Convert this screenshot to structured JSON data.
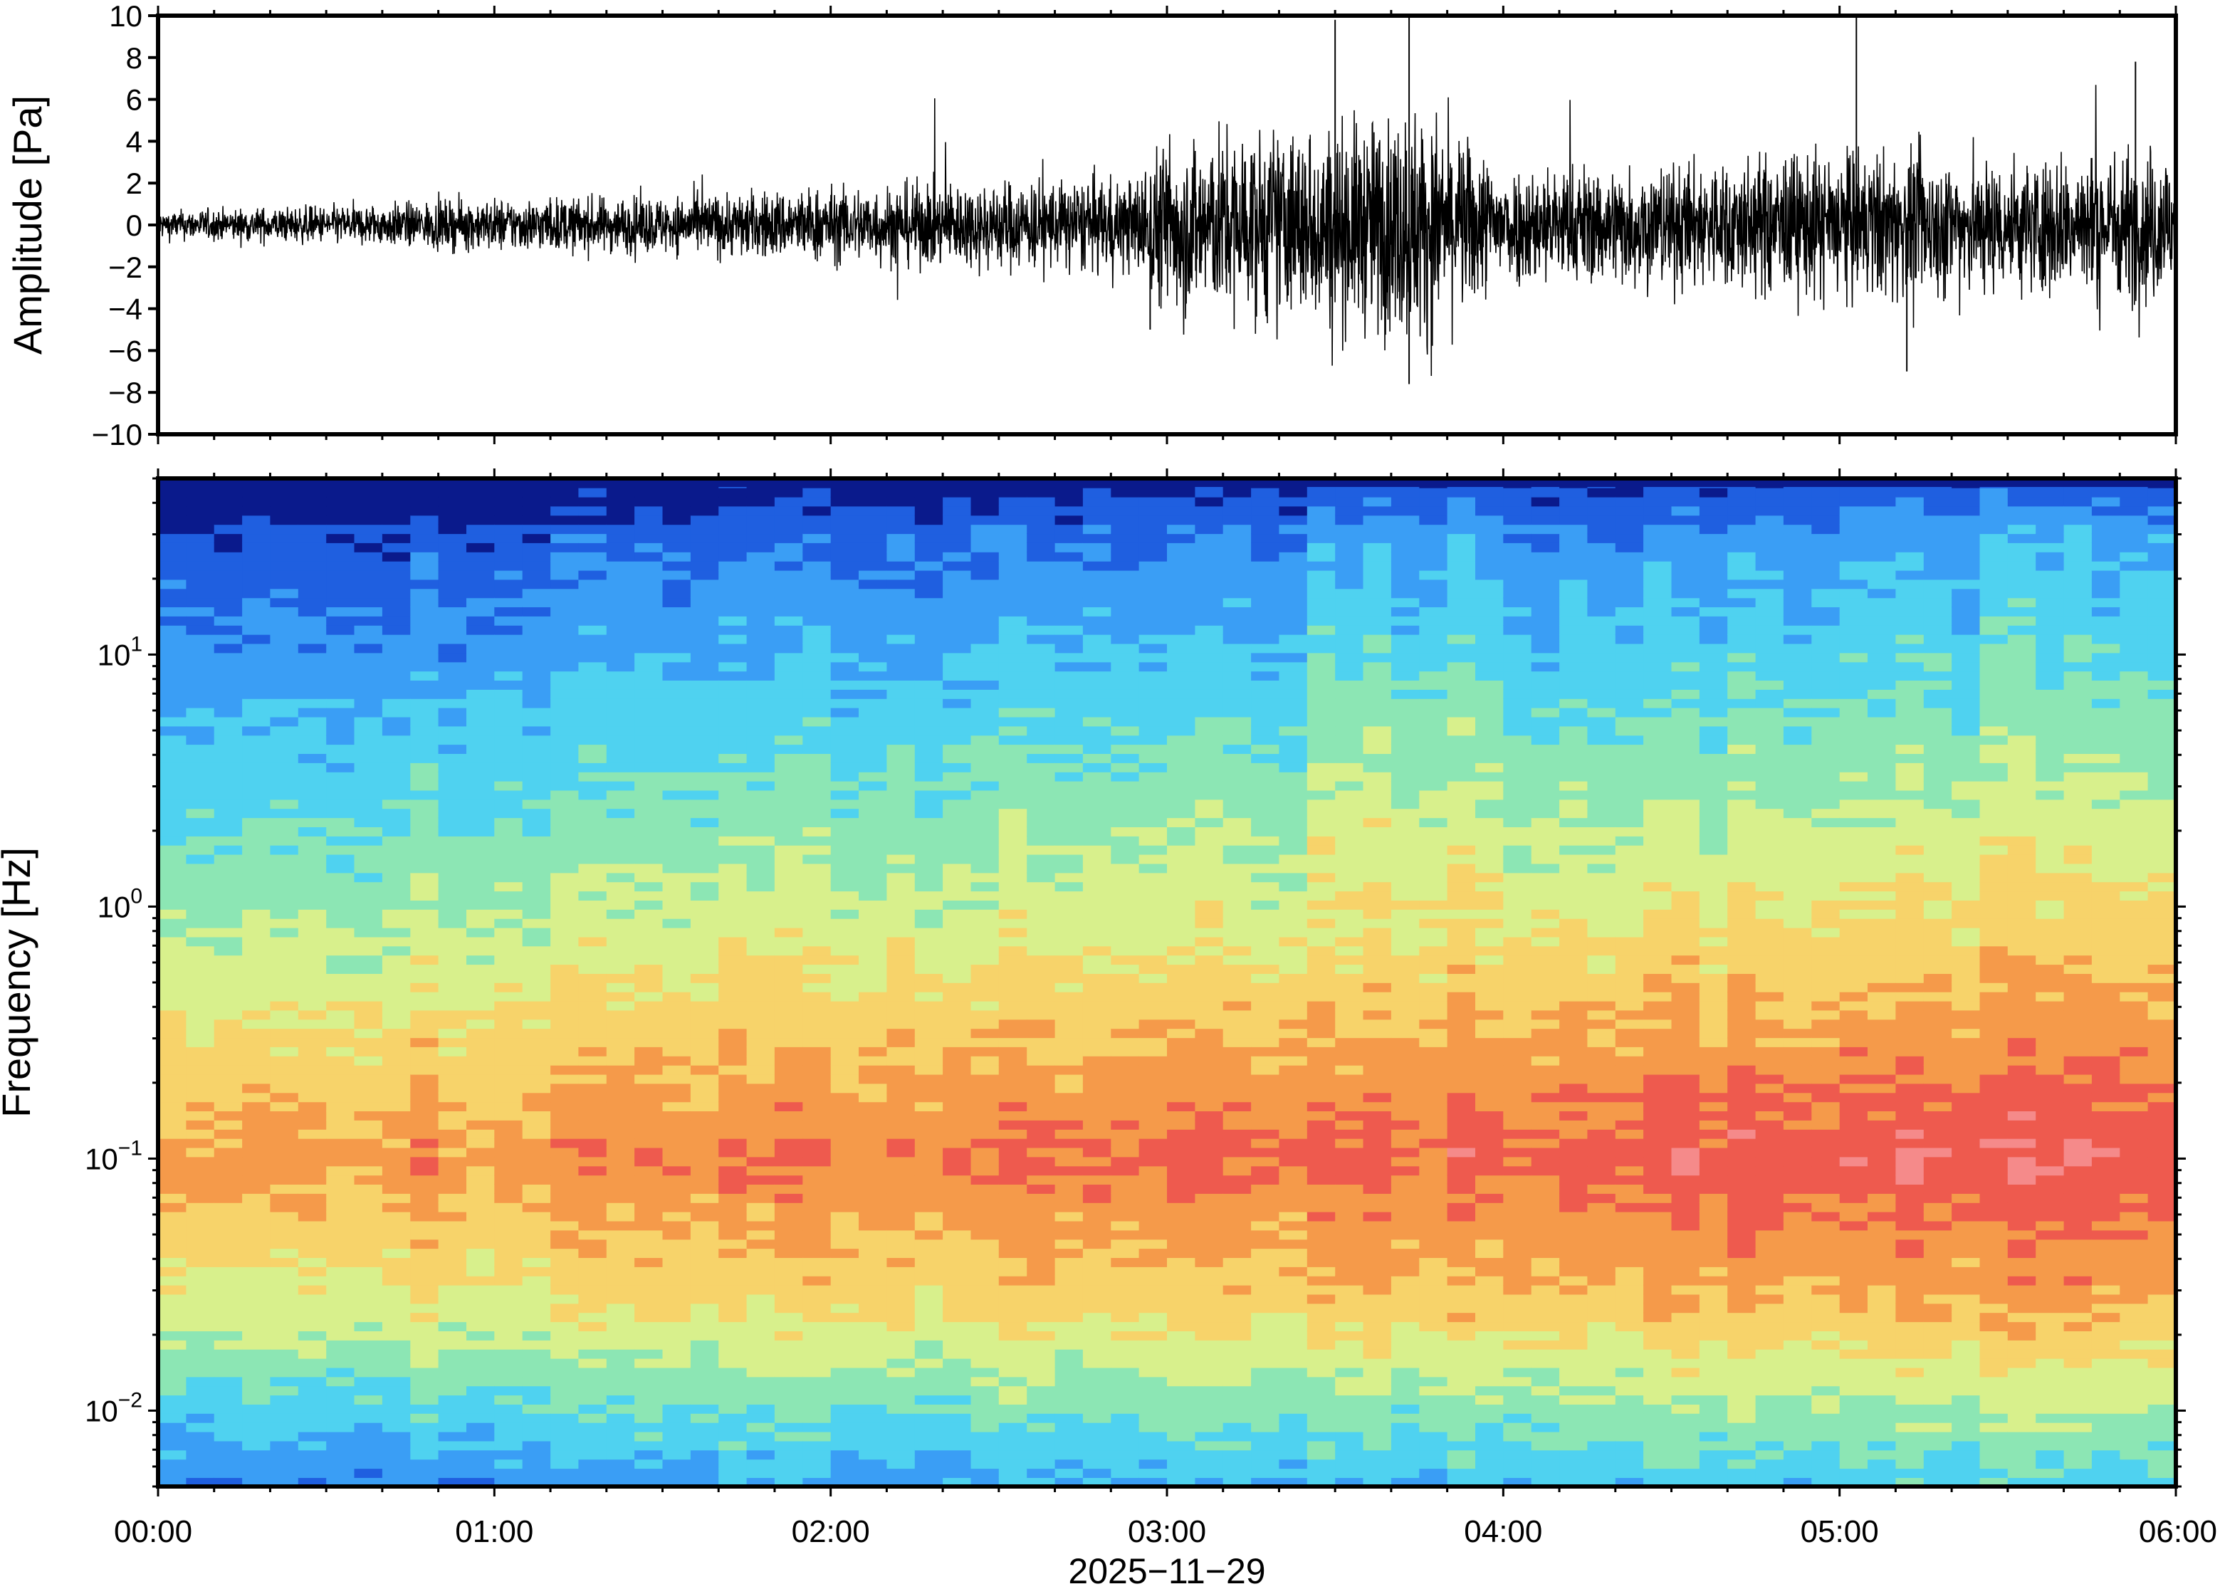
{
  "chart_data": [
    {
      "type": "line",
      "ylabel": "Amplitude [Pa]",
      "ylim": [
        -10,
        10
      ],
      "yticks": [
        "10",
        "8",
        "6",
        "4",
        "2",
        "0",
        "−2",
        "−4",
        "−6",
        "−8",
        "−10"
      ],
      "ytick_values": [
        10,
        8,
        6,
        4,
        2,
        0,
        -2,
        -4,
        -6,
        -8,
        -10
      ],
      "series": [
        {
          "color": "#000000",
          "envelope_note_hours": [
            0,
            0.5,
            1,
            1.5,
            2,
            2.5,
            2.9,
            3.0,
            3.5,
            3.75,
            4.0,
            4.5,
            5.0,
            5.5,
            6.0
          ],
          "envelope_pa": [
            0.6,
            0.8,
            1.1,
            1.2,
            1.6,
            1.9,
            2.0,
            3.8,
            4.2,
            5.0,
            2.5,
            2.6,
            3.2,
            2.8,
            3.4
          ]
        }
      ],
      "spikes": [
        {
          "x_hours": 2.95,
          "y": -5.0
        },
        {
          "x_hours": 3.5,
          "y": 9.8
        },
        {
          "x_hours": 3.72,
          "y": 9.9
        },
        {
          "x_hours": 3.72,
          "y": -7.6
        },
        {
          "x_hours": 5.05,
          "y": 9.9
        },
        {
          "x_hours": 5.2,
          "y": -7.0
        },
        {
          "x_hours": 5.88,
          "y": 7.8
        }
      ]
    },
    {
      "type": "heatmap",
      "ylabel": "Frequency [Hz]",
      "xlabel": "2025−11−29",
      "yscale": "log",
      "ylim": [
        0.005,
        50
      ],
      "yticks": [
        {
          "value": 0.01,
          "base": "10",
          "exp": "−2"
        },
        {
          "value": 0.1,
          "base": "10",
          "exp": "−1"
        },
        {
          "value": 1,
          "base": "10",
          "exp": "0"
        },
        {
          "value": 10,
          "base": "10",
          "exp": "1"
        }
      ],
      "xticks": [
        "00:00",
        "01:00",
        "02:00",
        "03:00",
        "04:00",
        "05:00",
        "06:00"
      ],
      "xlim_hours": [
        0,
        6
      ],
      "colormap": [
        "#0a1a8c",
        "#1f5fe0",
        "#3a9ef5",
        "#4fd2f0",
        "#8ce6b4",
        "#d8f08c",
        "#f7d36a",
        "#f59a4a",
        "#ee5a4e",
        "#f58a8a"
      ]
    }
  ]
}
